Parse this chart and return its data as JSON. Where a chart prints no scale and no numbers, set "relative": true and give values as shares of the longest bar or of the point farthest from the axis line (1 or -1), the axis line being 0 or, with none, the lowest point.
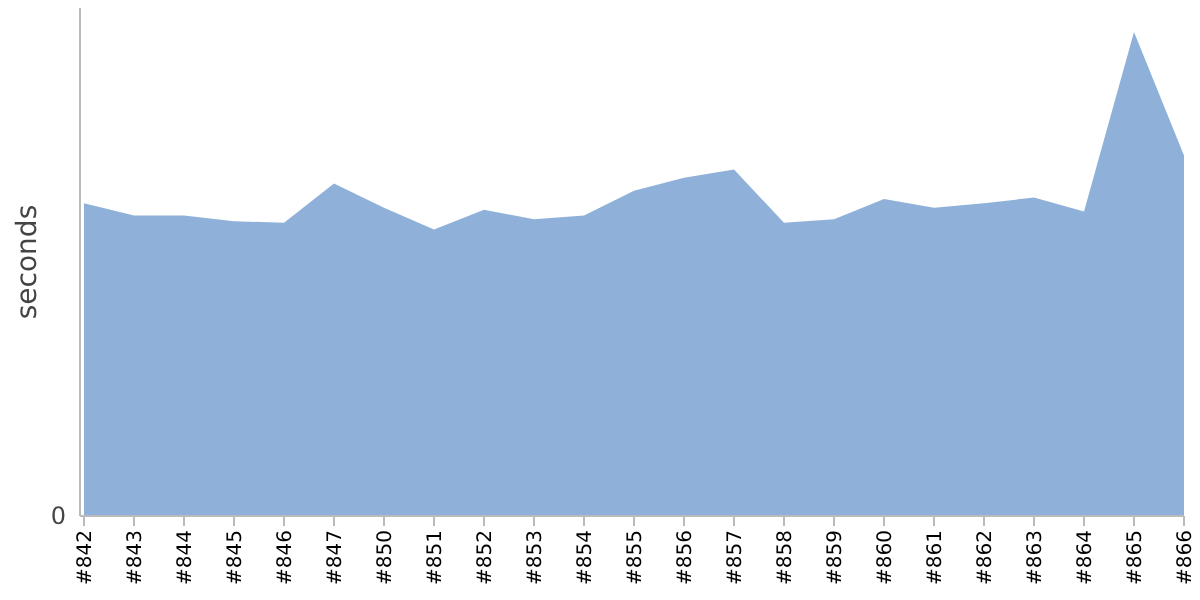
{
  "chart_data": {
    "type": "area",
    "relative": true,
    "ylabel": "seconds",
    "annotations": [
      "0"
    ],
    "categories": [
      "#842",
      "#843",
      "#844",
      "#845",
      "#846",
      "#847",
      "#850",
      "#851",
      "#852",
      "#853",
      "#854",
      "#855",
      "#856",
      "#857",
      "#858",
      "#859",
      "#860",
      "#861",
      "#862",
      "#863",
      "#864",
      "#865",
      "#866"
    ],
    "series": [
      {
        "color": "#8fb1d9",
        "values": [
          0.646,
          0.621,
          0.621,
          0.609,
          0.606,
          0.687,
          0.637,
          0.592,
          0.633,
          0.613,
          0.621,
          0.672,
          0.699,
          0.716,
          0.606,
          0.613,
          0.655,
          0.637,
          0.646,
          0.658,
          0.629,
          1,
          0.745
        ]
      }
    ]
  }
}
